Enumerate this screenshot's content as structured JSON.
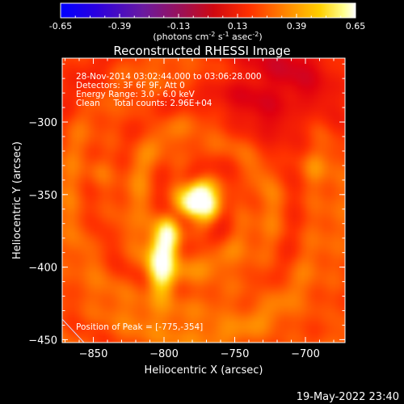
{
  "colorbar": {
    "tick_labels": [
      "-0.65",
      "-0.39",
      "-0.13",
      "0.13",
      "0.39",
      "0.65"
    ],
    "range": [
      -0.65,
      0.65
    ],
    "unit_label": {
      "pre": "(photons cm",
      "e1": "-2",
      "mid1": " s",
      "e2": "-1",
      "mid2": " asec",
      "e3": "-2",
      "post": ")"
    }
  },
  "chart_data": {
    "type": "heatmap",
    "title": "Reconstructed RHESSI Image",
    "xlabel": "Heliocentric X (arcsec)",
    "ylabel": "Heliocentric Y (arcsec)",
    "xlim": [
      -872,
      -672
    ],
    "ylim": [
      -452,
      -256
    ],
    "xticks": [
      -850,
      -800,
      -750,
      -700
    ],
    "yticks": [
      -300,
      -350,
      -400,
      -450
    ],
    "xtick_labels": [
      "−850",
      "−800",
      "−750",
      "−700"
    ],
    "ytick_labels": [
      "−300",
      "−350",
      "−400",
      "−450"
    ],
    "sources": [
      {
        "x": -775,
        "y": -354,
        "peak": 0.65,
        "sigma_x": 9,
        "sigma_y": 8
      },
      {
        "x": -802,
        "y": -398,
        "peak": 0.5,
        "sigma_x": 6,
        "sigma_y": 14
      },
      {
        "x": -797,
        "y": -378,
        "peak": 0.38,
        "sigma_x": 5,
        "sigma_y": 8
      }
    ],
    "annotations": {
      "time": "28-Nov-2014 03:02:44.000 to 03:06:28.000",
      "detectors": "Detectors: 3F 6F 9F, Att 0",
      "energy": "Energy Range: 3.0 - 6.0 keV",
      "clean": "Clean     Total counts: 2.96E+04",
      "peak": "Position of Peak = [-775,-354]"
    },
    "colorscale": [
      "#0000ff",
      "#3a00c8",
      "#7a1a8c",
      "#b0104a",
      "#e00010",
      "#ff3000",
      "#ff8a00",
      "#ffd200",
      "#ffff9a",
      "#ffffff"
    ]
  },
  "footer": {
    "timestamp": "19-May-2022 23:40"
  }
}
